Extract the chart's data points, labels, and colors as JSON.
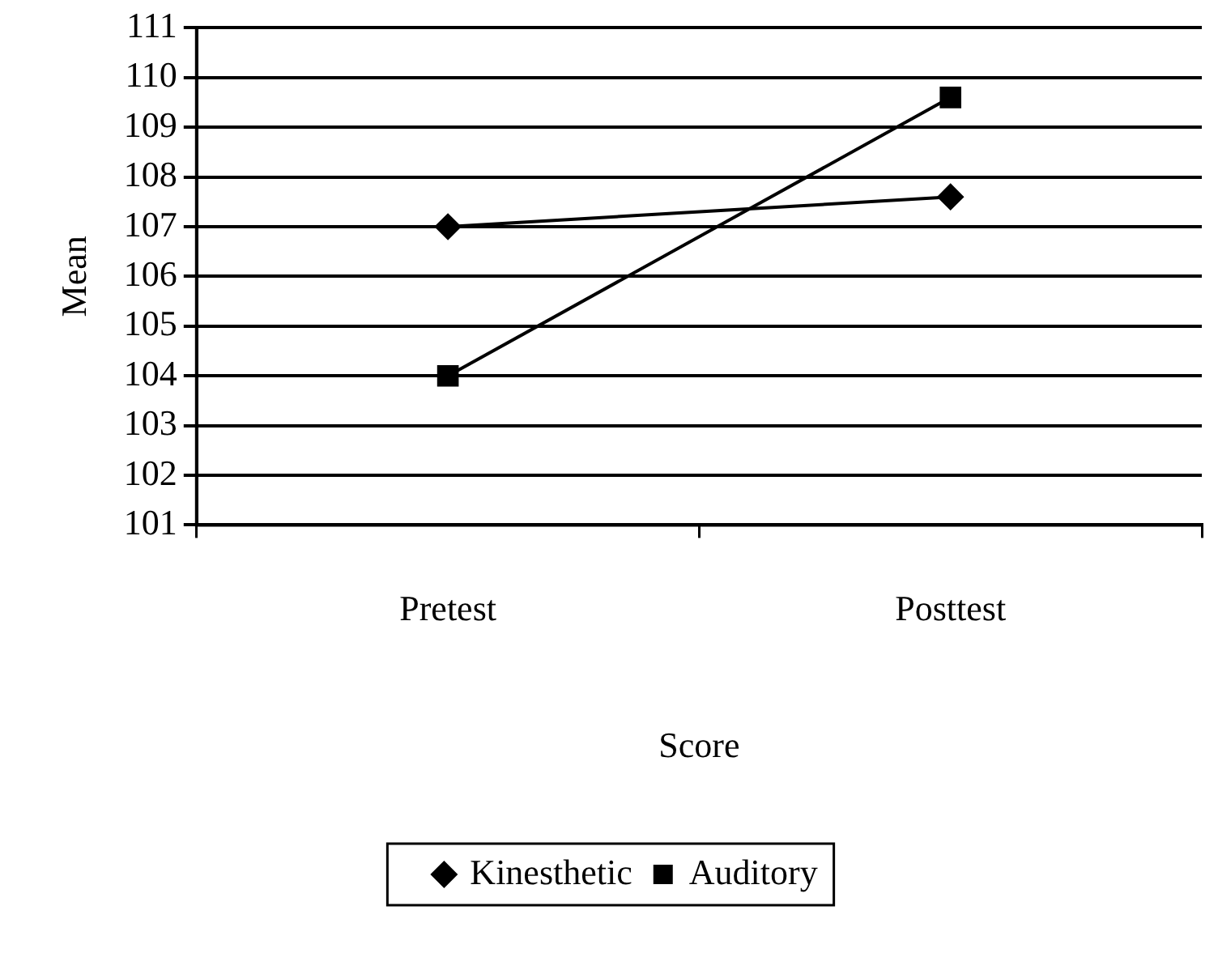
{
  "chart_data": {
    "type": "line",
    "xlabel": "Score",
    "ylabel": "Mean",
    "categories": [
      "Pretest",
      "Posttest"
    ],
    "series": [
      {
        "name": "Kinesthetic",
        "color": "#000000",
        "marker": "diamond",
        "values": [
          107,
          107.6
        ]
      },
      {
        "name": "Auditory",
        "color": "#000000",
        "marker": "square",
        "values": [
          104,
          109.6
        ]
      }
    ],
    "ylim": [
      101,
      111
    ],
    "yticks": [
      101,
      102,
      103,
      104,
      105,
      106,
      107,
      108,
      109,
      110,
      111
    ],
    "grid": "y",
    "legend": "bottom",
    "line_style": "solid"
  }
}
